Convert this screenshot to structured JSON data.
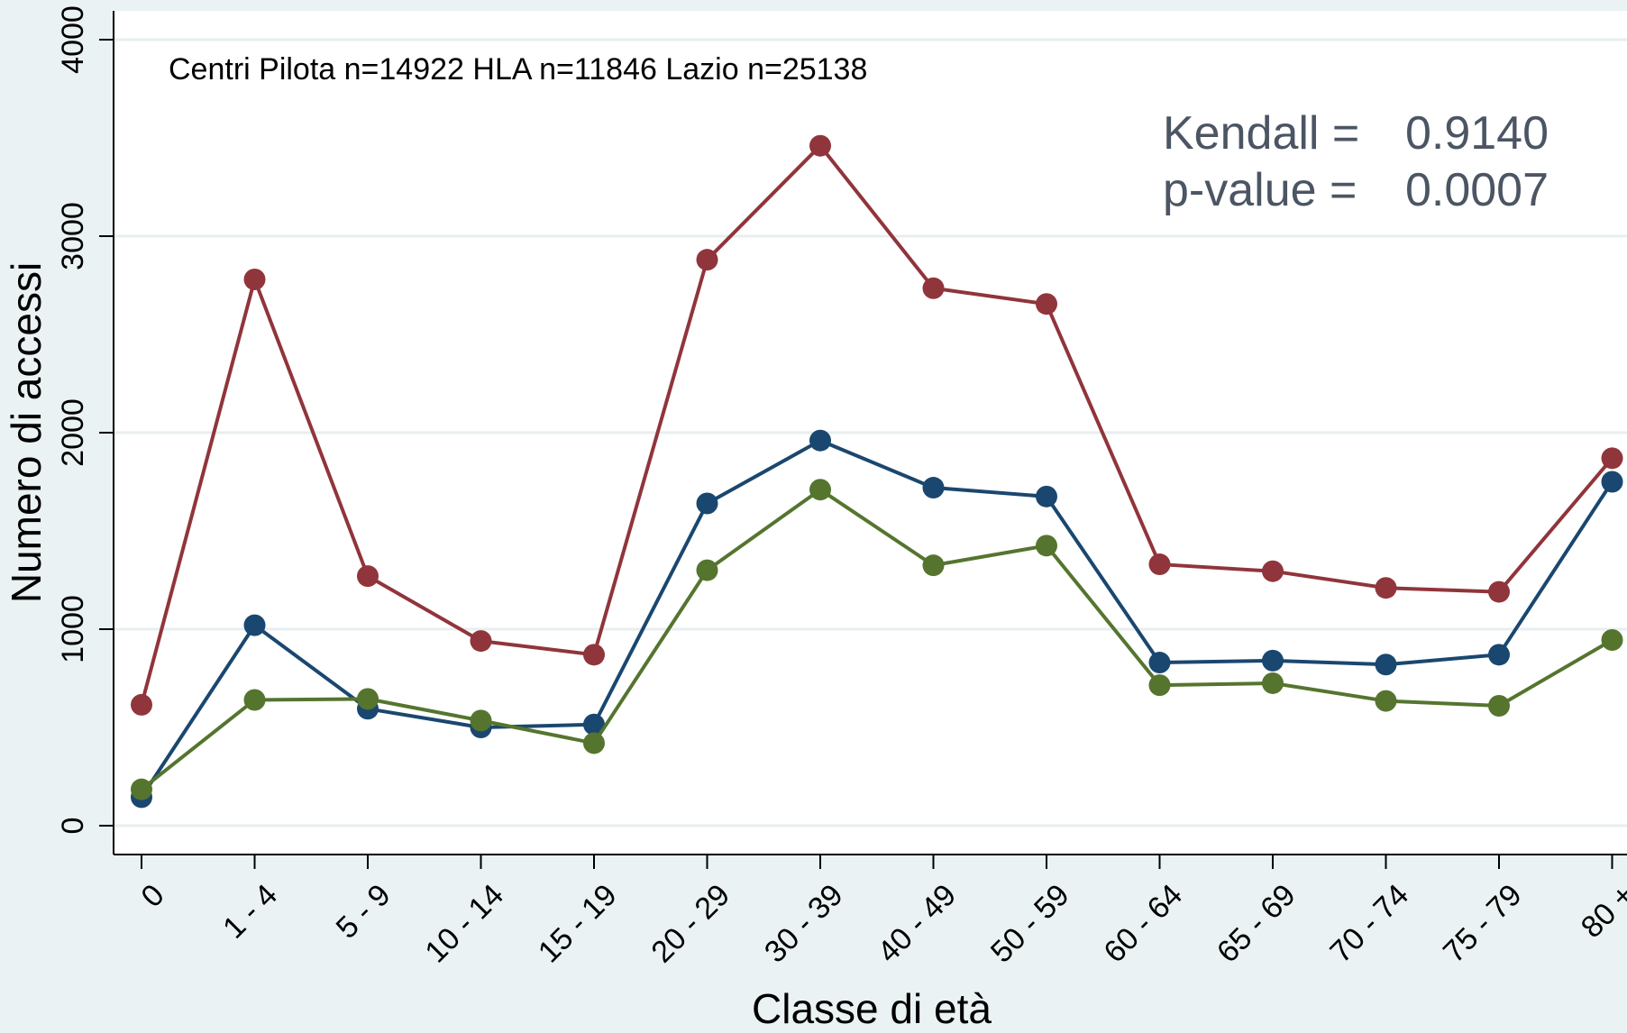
{
  "chart_data": {
    "type": "line",
    "xlabel": "Classe di età",
    "ylabel": "Numero di accessi",
    "annotation": "Centri Pilota n=14922 HLA n=11846 Lazio n=25138",
    "stats": {
      "kendall_label": "Kendall =",
      "kendall_value": "0.9140",
      "pvalue_label": "p-value =",
      "pvalue_value": "0.0007"
    },
    "categories": [
      "0",
      "1 - 4",
      "5 - 9",
      "10 - 14",
      "15 - 19",
      "20 - 29",
      "30 - 39",
      "40 - 49",
      "50 - 59",
      "60 - 64",
      "65 - 69",
      "70 - 74",
      "75 - 79",
      "80 +"
    ],
    "yticks": [
      0,
      1000,
      2000,
      3000,
      4000
    ],
    "ylim": [
      0,
      4000
    ],
    "grid": true,
    "series": [
      {
        "color": "#90353b",
        "values": [
          615,
          2780,
          1270,
          940,
          870,
          2880,
          3460,
          2735,
          2655,
          1330,
          1295,
          1210,
          1190,
          1870
        ]
      },
      {
        "color": "#1a476f",
        "values": [
          145,
          1020,
          595,
          500,
          515,
          1640,
          1960,
          1720,
          1675,
          830,
          840,
          820,
          870,
          1750
        ]
      },
      {
        "color": "#55752f",
        "values": [
          185,
          640,
          645,
          535,
          420,
          1300,
          1710,
          1325,
          1425,
          715,
          725,
          635,
          610,
          945
        ]
      }
    ]
  }
}
